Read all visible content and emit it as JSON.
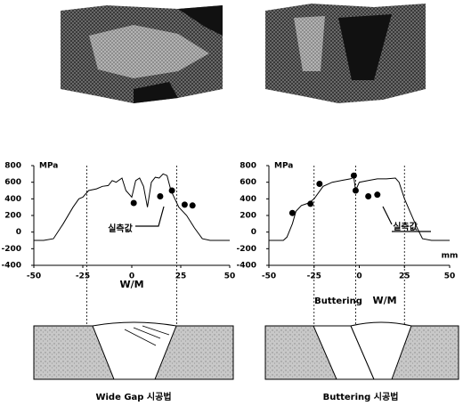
{
  "chart_data": [
    {
      "type": "line",
      "ylabel": "MPa",
      "xlabel": "W/M",
      "annotation": "실측값",
      "x": [
        -50,
        -45,
        -40,
        -35,
        -30,
        -27,
        -25,
        -22,
        -18,
        -15,
        -12,
        -10,
        -8,
        -5,
        -3,
        0,
        2,
        4,
        6,
        8,
        10,
        12,
        14,
        16,
        18,
        20,
        22,
        24,
        28,
        32,
        36,
        40,
        50
      ],
      "values": [
        -100,
        -100,
        -80,
        100,
        300,
        400,
        420,
        500,
        520,
        550,
        560,
        620,
        600,
        650,
        500,
        420,
        620,
        650,
        550,
        300,
        600,
        660,
        650,
        700,
        680,
        500,
        400,
        300,
        200,
        50,
        -80,
        -100,
        -100
      ],
      "points": {
        "x": [
          1,
          14.5,
          20.5,
          27,
          31
        ],
        "values": [
          350,
          430,
          500,
          330,
          320
        ]
      },
      "vlines": [
        -23,
        23
      ],
      "xlim": [
        -50,
        50
      ],
      "xticks": [
        -50,
        -25,
        0,
        25,
        50
      ],
      "ylim": [
        -400,
        800
      ],
      "yticks": [
        -400,
        -200,
        0,
        200,
        400,
        600,
        800
      ],
      "color": "#000000",
      "caption": "Wide Gap 시공법"
    },
    {
      "type": "line",
      "ylabel": "MPa",
      "xlabel": "W/M",
      "annotation": "실측값",
      "label": "Buttering",
      "unit": "mm",
      "x": [
        -50,
        -42,
        -40,
        -37,
        -35,
        -32,
        -28,
        -25,
        -20,
        -15,
        -10,
        -5,
        -3,
        -2,
        0,
        5,
        10,
        15,
        20,
        22,
        25,
        28,
        32,
        35,
        40,
        50
      ],
      "values": [
        -100,
        -100,
        -60,
        100,
        250,
        320,
        350,
        400,
        550,
        600,
        620,
        640,
        660,
        500,
        600,
        620,
        640,
        640,
        650,
        600,
        400,
        250,
        50,
        -80,
        -100,
        -100
      ],
      "points": {
        "x": [
          -37,
          -27,
          -22,
          -3,
          -2,
          5,
          10
        ],
        "values": [
          230,
          340,
          580,
          680,
          500,
          430,
          450
        ]
      },
      "vlines": [
        -25,
        -2,
        25
      ],
      "xlim": [
        -50,
        50
      ],
      "xticks": [
        -50,
        -25,
        0,
        25,
        50
      ],
      "ylim": [
        -400,
        800
      ],
      "yticks": [
        -400,
        -200,
        0,
        200,
        400,
        600,
        800
      ],
      "color": "#000000",
      "caption": "Buttering 시공법"
    }
  ]
}
